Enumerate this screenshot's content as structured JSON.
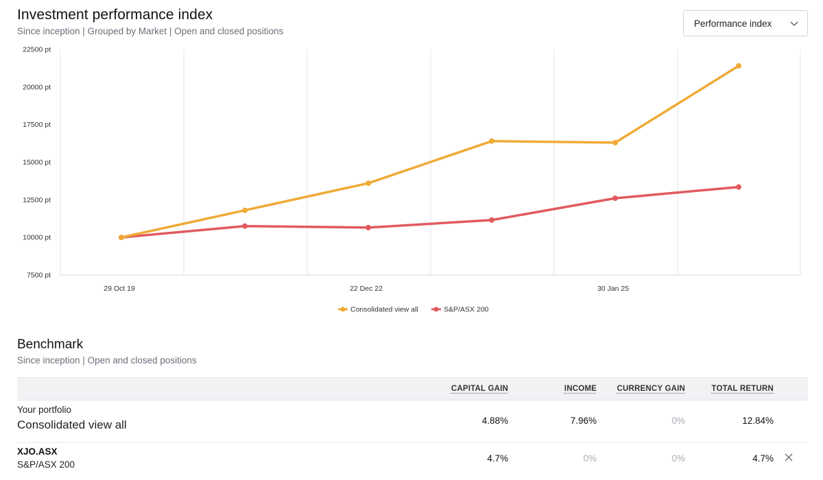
{
  "performance": {
    "title": "Investment performance index",
    "subtitle": "Since inception | Grouped by Market | Open and closed positions",
    "selector": {
      "value": "Performance index",
      "icon": "chevron-down-icon"
    }
  },
  "chart_data": {
    "type": "line",
    "title": "Investment performance index",
    "xlabel": "",
    "ylabel": "",
    "ylim": [
      7500,
      22500
    ],
    "y_ticks": [
      7500,
      10000,
      12500,
      15000,
      17500,
      20000,
      22500
    ],
    "y_tick_suffix": " pt",
    "x_tick_labels": [
      {
        "label": "29 Oct 19",
        "index": 0
      },
      {
        "label": "22 Dec 22",
        "index": 2
      },
      {
        "label": "30 Jan 25",
        "index": 4
      }
    ],
    "point_count": 6,
    "series": [
      {
        "name": "Consolidated view all",
        "color": "#f0aa36",
        "values": [
          10000,
          11800,
          13600,
          16400,
          16300,
          21400
        ]
      },
      {
        "name": "S&P/ASX 200",
        "color": "#e15a5e",
        "values": [
          10000,
          10750,
          10650,
          11150,
          12600,
          13350
        ]
      }
    ],
    "legend_position": "bottom-center",
    "grid": true
  },
  "benchmark": {
    "title": "Benchmark",
    "subtitle": "Since inception | Open and closed positions",
    "columns": {
      "capital_gain": "CAPITAL GAIN",
      "income": "INCOME",
      "currency_gain": "CURRENCY GAIN",
      "total_return": "TOTAL RETURN"
    },
    "rows": [
      {
        "label": "Your portfolio",
        "name": "Consolidated view all",
        "capital_gain": "4.88%",
        "income": "7.96%",
        "currency_gain": "0%",
        "total_return": "12.84%"
      },
      {
        "label": "XJO.ASX",
        "name": "S&P/ASX 200",
        "capital_gain": "4.7%",
        "income": "0%",
        "currency_gain": "0%",
        "total_return": "4.7%",
        "remove_icon": "close-icon"
      }
    ]
  }
}
